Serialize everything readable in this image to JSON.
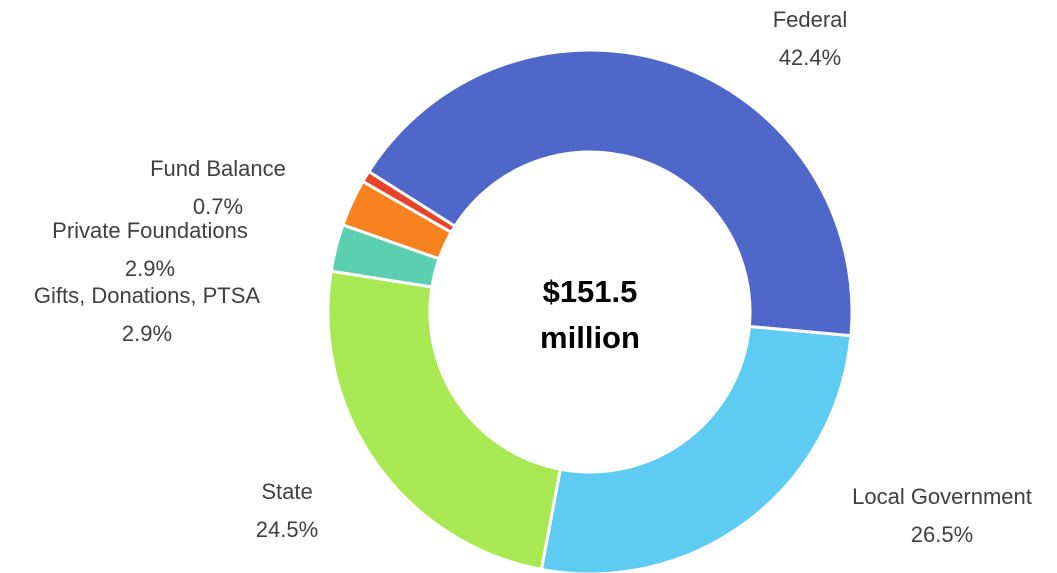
{
  "chart_data": {
    "type": "donut",
    "categories": [
      "Federal",
      "Local Government",
      "State",
      "Gifts, Donations, PTSA",
      "Private Foundations",
      "Fund Balance"
    ],
    "values": [
      42.4,
      26.5,
      24.5,
      2.9,
      2.9,
      0.7
    ],
    "value_labels": [
      "42.4%",
      "26.5%",
      "24.5%",
      "2.9%",
      "2.9%",
      "0.7%"
    ],
    "colors": [
      "#4f67c9",
      "#5ecbf2",
      "#a8e852",
      "#5ccfb0",
      "#f7821e",
      "#e8432a"
    ],
    "center_text": [
      "$151.5",
      "million"
    ]
  }
}
